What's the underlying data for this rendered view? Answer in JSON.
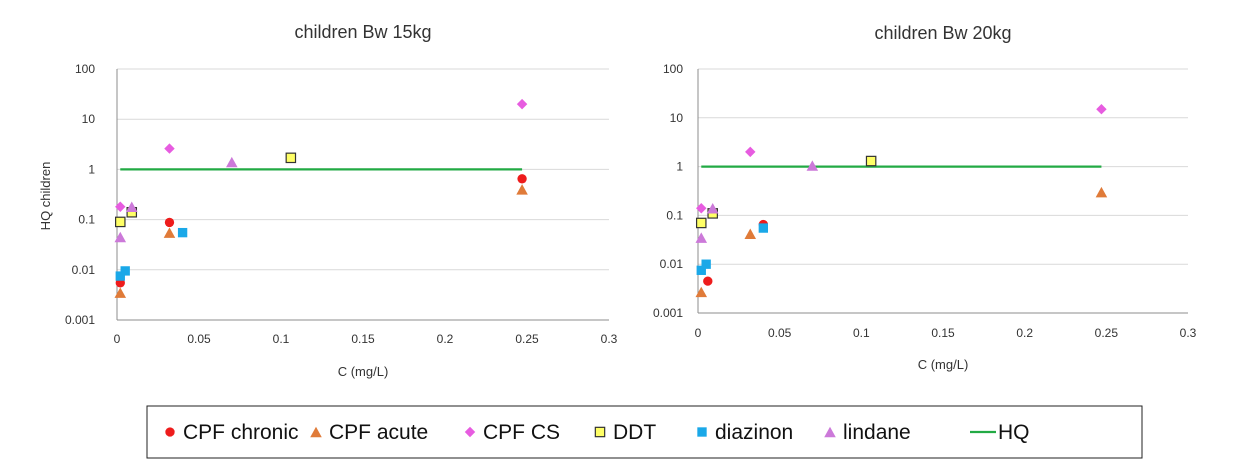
{
  "colors": {
    "cpf_chronic": "#ee1c1c",
    "cpf_acute": "#e07b39",
    "cpf_cs": "#e75ce0",
    "ddt": "#ffff66",
    "ddt_stroke": "#333333",
    "diazinon": "#1aa8e8",
    "lindane": "#cc79d9",
    "hq": "#22aa44"
  },
  "legend": [
    {
      "name": "CPF chronic",
      "marker": "circle",
      "color_key": "cpf_chronic"
    },
    {
      "name": "CPF acute",
      "marker": "triangle",
      "color_key": "cpf_acute"
    },
    {
      "name": "CPF CS",
      "marker": "diamond",
      "color_key": "cpf_cs"
    },
    {
      "name": "DDT",
      "marker": "square-outline",
      "color_key": "ddt"
    },
    {
      "name": "diazinon",
      "marker": "square",
      "color_key": "diazinon"
    },
    {
      "name": "lindane",
      "marker": "triangle",
      "color_key": "lindane"
    },
    {
      "name": "HQ",
      "marker": "line",
      "color_key": "hq"
    }
  ],
  "chart_data": [
    {
      "type": "scatter",
      "title": "children Bw 15kg",
      "xlabel": "C (mg/L)",
      "ylabel": "HQ children",
      "xlim": [
        0,
        0.3
      ],
      "ylim": [
        0.001,
        100
      ],
      "yscale": "log",
      "grid": "horizontal",
      "x_ticks": [
        "0",
        "0.05",
        "0.1",
        "0.15",
        "0.2",
        "0.25",
        "0.3"
      ],
      "y_ticks": [
        "0.001",
        "0.01",
        "0.1",
        "1",
        "10",
        "100"
      ],
      "series": [
        {
          "name": "CPF chronic",
          "points": [
            [
              0.002,
              0.0055
            ],
            [
              0.032,
              0.088
            ],
            [
              0.247,
              0.65
            ]
          ]
        },
        {
          "name": "CPF acute",
          "points": [
            [
              0.002,
              0.0035
            ],
            [
              0.032,
              0.055
            ],
            [
              0.247,
              0.4
            ]
          ]
        },
        {
          "name": "CPF CS",
          "points": [
            [
              0.002,
              0.18
            ],
            [
              0.032,
              2.6
            ],
            [
              0.247,
              20
            ]
          ]
        },
        {
          "name": "DDT",
          "points": [
            [
              0.002,
              0.09
            ],
            [
              0.009,
              0.14
            ],
            [
              0.106,
              1.7
            ]
          ]
        },
        {
          "name": "diazinon",
          "points": [
            [
              0.002,
              0.0075
            ],
            [
              0.005,
              0.0095
            ],
            [
              0.04,
              0.055
            ]
          ]
        },
        {
          "name": "lindane",
          "points": [
            [
              0.002,
              0.045
            ],
            [
              0.009,
              0.18
            ],
            [
              0.07,
              1.4
            ]
          ]
        },
        {
          "name": "HQ",
          "line": [
            [
              0.002,
              1
            ],
            [
              0.247,
              1
            ]
          ]
        }
      ]
    },
    {
      "type": "scatter",
      "title": "children Bw 20kg",
      "xlabel": "C (mg/L)",
      "ylabel": "",
      "xlim": [
        0,
        0.3
      ],
      "ylim": [
        0.001,
        100
      ],
      "yscale": "log",
      "grid": "horizontal",
      "x_ticks": [
        "0",
        "0.05",
        "0.1",
        "0.15",
        "0.2",
        "0.25",
        "0.3"
      ],
      "y_ticks": [
        "0.001",
        "0.01",
        "0.1",
        "1",
        "10",
        "100"
      ],
      "series": [
        {
          "name": "CPF chronic",
          "points": [
            [
              0.006,
              0.0045
            ],
            [
              0.04,
              0.065
            ]
          ]
        },
        {
          "name": "CPF acute",
          "points": [
            [
              0.002,
              0.0027
            ],
            [
              0.032,
              0.042
            ],
            [
              0.247,
              0.3
            ]
          ]
        },
        {
          "name": "CPF CS",
          "points": [
            [
              0.002,
              0.14
            ],
            [
              0.032,
              2.0
            ],
            [
              0.247,
              15
            ]
          ]
        },
        {
          "name": "DDT",
          "points": [
            [
              0.002,
              0.07
            ],
            [
              0.009,
              0.11
            ],
            [
              0.106,
              1.3
            ]
          ]
        },
        {
          "name": "diazinon",
          "points": [
            [
              0.002,
              0.0075
            ],
            [
              0.005,
              0.01
            ],
            [
              0.04,
              0.055
            ]
          ]
        },
        {
          "name": "lindane",
          "points": [
            [
              0.002,
              0.035
            ],
            [
              0.009,
              0.14
            ],
            [
              0.07,
              1.05
            ]
          ]
        },
        {
          "name": "HQ",
          "line": [
            [
              0.002,
              1
            ],
            [
              0.247,
              1
            ]
          ]
        }
      ]
    }
  ]
}
